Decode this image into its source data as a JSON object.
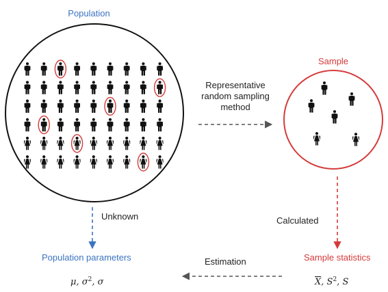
{
  "population": {
    "title": "Population",
    "rows": 6,
    "cols": 9,
    "male_rows": 4,
    "highlighted": [
      [
        0,
        2
      ],
      [
        1,
        8
      ],
      [
        2,
        5
      ],
      [
        3,
        1
      ],
      [
        4,
        3
      ],
      [
        5,
        7
      ]
    ]
  },
  "sample": {
    "title": "Sample",
    "people": [
      "male",
      "male",
      "male",
      "male",
      "female",
      "female"
    ]
  },
  "sampling_method": {
    "line1": "Representative",
    "line2": "random sampling",
    "line3": "method"
  },
  "unknown_label": "Unknown",
  "calculated_label": "Calculated",
  "estimation_label": "Estimation",
  "population_parameters": {
    "title": "Population parameters",
    "mu": "μ",
    "sep1": ", ",
    "sigma": "σ",
    "sq": "2",
    "sep2": ", ",
    "sigma2": "σ"
  },
  "sample_statistics": {
    "title": "Sample statistics",
    "xbar": "X",
    "sep1": ", ",
    "s": "S",
    "sq": "2",
    "sep2": ", ",
    "s2": "S"
  },
  "colors": {
    "blue": "#3b74c0",
    "red": "#d43a3a",
    "figure": "#111111",
    "dash": "#555555"
  },
  "icons": {
    "male": "male-person-icon",
    "female": "female-person-icon"
  }
}
